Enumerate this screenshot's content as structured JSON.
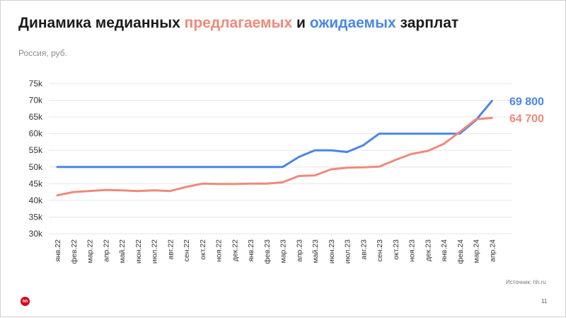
{
  "slide": {
    "title_parts": [
      "Динамика медианных ",
      "предлагаемых",
      " и ",
      "ожидаемых",
      " зарплат"
    ],
    "subtitle": "Россия, руб.",
    "source": "Источник: hh.ru",
    "page_number": "11",
    "logo_text": "hh"
  },
  "colors": {
    "offered": "#ef8a7a",
    "expected": "#4a86e8",
    "grid": "#e6e6e6",
    "title": "#1b1b1b"
  },
  "chart_data": {
    "type": "line",
    "title": "Динамика медианных предлагаемых и ожидаемых зарплат",
    "subtitle": "Россия, руб.",
    "categories": [
      "янв.22",
      "фев.22",
      "мар.22",
      "апр.22",
      "май.22",
      "июн.22",
      "июл.22",
      "авг.22",
      "сен.22",
      "окт.22",
      "ноя.22",
      "дек.22",
      "янв.23",
      "фев.23",
      "мар.23",
      "апр.23",
      "май.23",
      "июн.23",
      "июл.23",
      "авг.23",
      "сен.23",
      "окт.23",
      "ноя.23",
      "дек.23",
      "янв.24",
      "фев.24",
      "мар.24",
      "апр.24"
    ],
    "y_ticks": [
      "30k",
      "35k",
      "40k",
      "45k",
      "50k",
      "55k",
      "60k",
      "65k",
      "70k",
      "75k"
    ],
    "ylim": [
      30000,
      75000
    ],
    "grid": true,
    "series": [
      {
        "key": "expected",
        "color": "#4a86e8",
        "end_label": "69 800",
        "values": [
          50000,
          50000,
          50000,
          50000,
          50000,
          50000,
          50000,
          50000,
          50000,
          50000,
          50000,
          50000,
          50000,
          50000,
          50000,
          53000,
          55000,
          55000,
          54500,
          56500,
          60000,
          60000,
          60000,
          60000,
          60000,
          60000,
          64000,
          69800
        ]
      },
      {
        "key": "offered",
        "color": "#ef8a7a",
        "end_label": "64 700",
        "values": [
          41500,
          42500,
          42800,
          43100,
          43000,
          42800,
          43000,
          42800,
          44000,
          45000,
          44900,
          44900,
          45000,
          45000,
          45400,
          47300,
          47500,
          49300,
          49800,
          49900,
          50100,
          52100,
          53900,
          54800,
          56900,
          60500,
          64300,
          64700
        ]
      }
    ]
  }
}
